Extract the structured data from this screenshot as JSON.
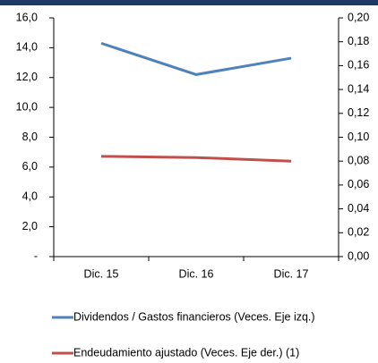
{
  "chart_data": {
    "type": "line",
    "categories": [
      "Dic. 15",
      "Dic. 16",
      "Dic. 17"
    ],
    "series": [
      {
        "name": "Dividendos / Gastos financieros (Veces. Eje izq.)",
        "color": "#4f81bd",
        "values": [
          14.3,
          12.2,
          13.3
        ]
      },
      {
        "name": "Endeudamiento ajustado (Veces. Eje der.) (1)",
        "color": "#c0504d",
        "values": [
          0.084,
          0.083,
          0.08
        ],
        "axis": "y2"
      }
    ],
    "ylim": [
      0,
      16
    ],
    "yticks": [
      {
        "value": 0,
        "label": "-"
      },
      {
        "value": 2,
        "label": "2,0"
      },
      {
        "value": 4,
        "label": "4,0"
      },
      {
        "value": 6,
        "label": "6,0"
      },
      {
        "value": 8,
        "label": "8,0"
      },
      {
        "value": 10,
        "label": "10,0"
      },
      {
        "value": 12,
        "label": "12,0"
      },
      {
        "value": 14,
        "label": "14,0"
      },
      {
        "value": 16,
        "label": "16,0"
      }
    ],
    "y2lim": [
      0,
      0.2
    ],
    "y2ticks": [
      {
        "value": 0,
        "label": "0,00"
      },
      {
        "value": 0.02,
        "label": "0,02"
      },
      {
        "value": 0.04,
        "label": "0,04"
      },
      {
        "value": 0.06,
        "label": "0,06"
      },
      {
        "value": 0.08,
        "label": "0,08"
      },
      {
        "value": 0.1,
        "label": "0,10"
      },
      {
        "value": 0.12,
        "label": "0,12"
      },
      {
        "value": 0.14,
        "label": "0,14"
      },
      {
        "value": 0.16,
        "label": "0,16"
      },
      {
        "value": 0.18,
        "label": "0,18"
      },
      {
        "value": 0.2,
        "label": "0,20"
      }
    ]
  }
}
